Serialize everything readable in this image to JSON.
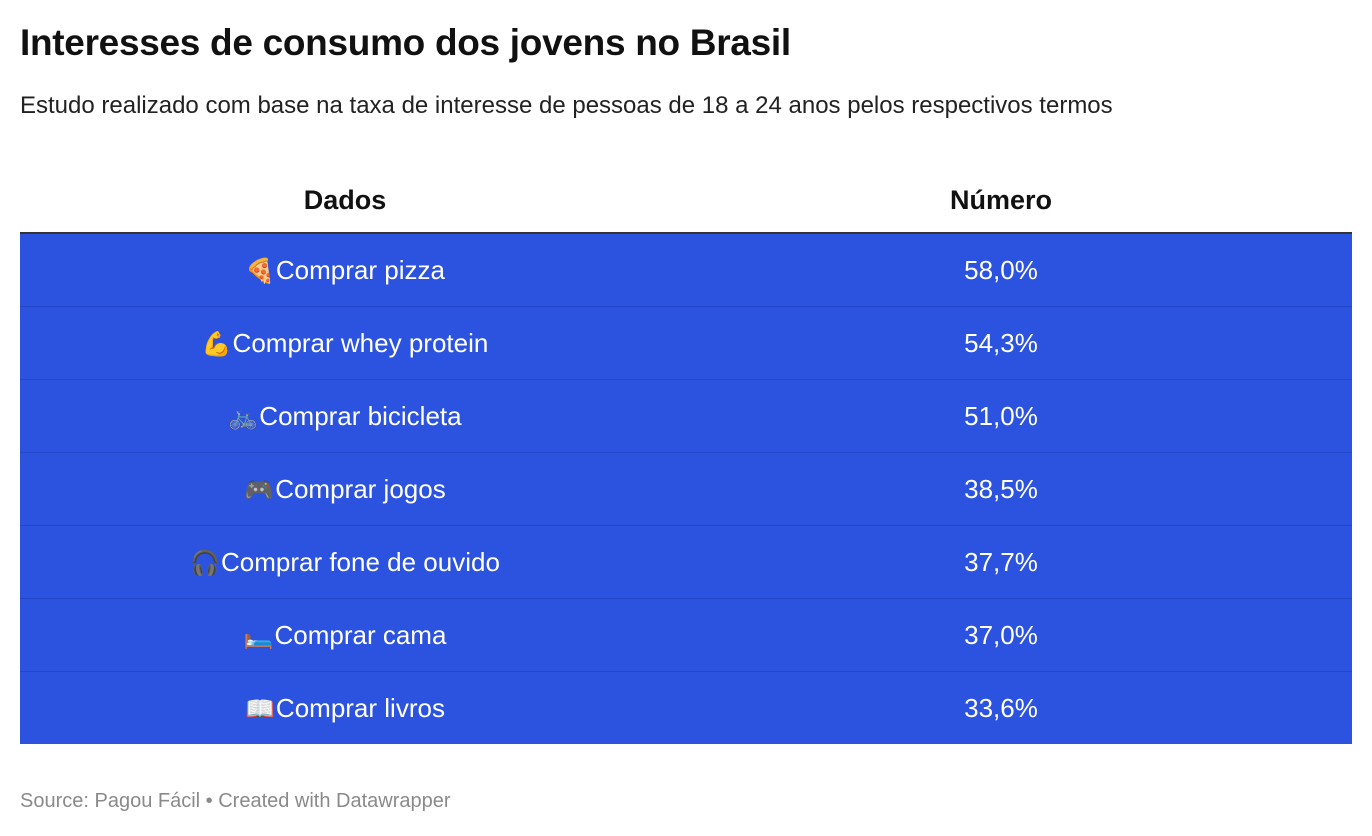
{
  "title": "Interesses de consumo dos jovens no Brasil",
  "subtitle": "Estudo realizado com base na taxa de interesse de pessoas de 18 a 24 anos pelos respectivos termos",
  "colors": {
    "row_background": "#2c53e0",
    "row_text": "#ffffff",
    "header_rule": "#333333",
    "footer_text": "#8a8a8a"
  },
  "chart_data": {
    "type": "table",
    "columns": [
      "Dados",
      "Número"
    ],
    "rows": [
      {
        "icon": "pizza-icon",
        "emoji": "🍕",
        "label": "Comprar pizza",
        "value_text": "58,0%",
        "value": 58.0
      },
      {
        "icon": "flexed-biceps-icon",
        "emoji": "💪",
        "label": "Comprar whey protein",
        "value_text": "54,3%",
        "value": 54.3
      },
      {
        "icon": "bicycle-icon",
        "emoji": "🚲",
        "label": "Comprar bicicleta",
        "value_text": "51,0%",
        "value": 51.0
      },
      {
        "icon": "game-controller-icon",
        "emoji": "🎮",
        "label": "Comprar jogos",
        "value_text": "38,5%",
        "value": 38.5
      },
      {
        "icon": "headphones-icon",
        "emoji": "🎧",
        "label": "Comprar fone de ouvido",
        "value_text": "37,7%",
        "value": 37.7
      },
      {
        "icon": "bed-icon",
        "emoji": "🛏️",
        "label": "Comprar cama",
        "value_text": "37,0%",
        "value": 37.0
      },
      {
        "icon": "open-book-icon",
        "emoji": "📖",
        "label": "Comprar livros",
        "value_text": "33,6%",
        "value": 33.6
      }
    ]
  },
  "footer": "Source: Pagou Fácil • Created with Datawrapper"
}
